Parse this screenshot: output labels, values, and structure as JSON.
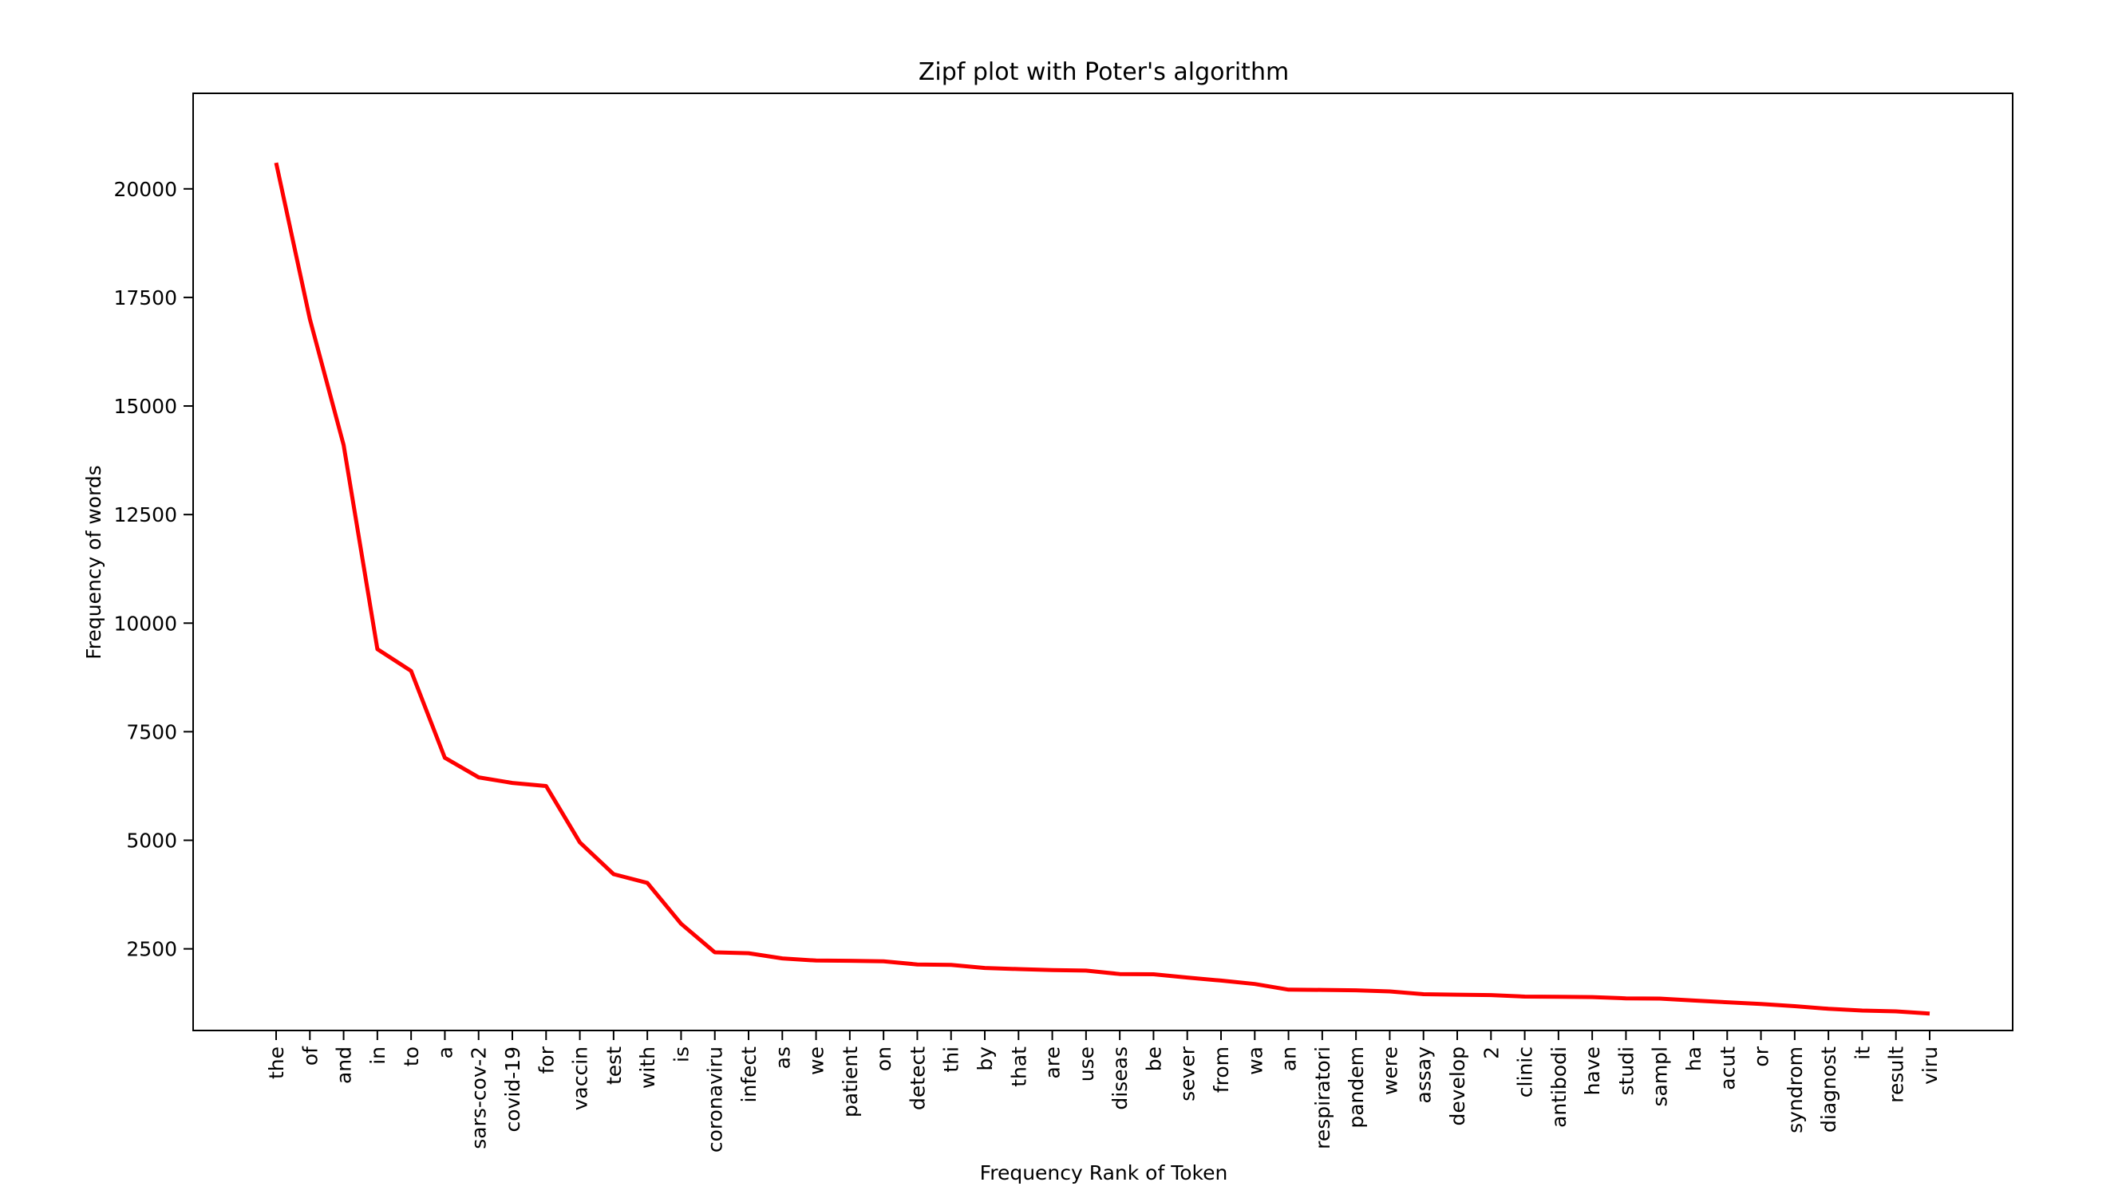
{
  "chart_data": {
    "type": "line",
    "title": "Zipf plot with Poter's algorithm",
    "xlabel": "Frequency Rank of Token",
    "ylabel": "Frequency of words",
    "categories": [
      "the",
      "of",
      "and",
      "in",
      "to",
      "a",
      "sars-cov-2",
      "covid-19",
      "for",
      "vaccin",
      "test",
      "with",
      "is",
      "coronaviru",
      "infect",
      "as",
      "we",
      "patient",
      "on",
      "detect",
      "thi",
      "by",
      "that",
      "are",
      "use",
      "diseas",
      "be",
      "sever",
      "from",
      "wa",
      "an",
      "respiratori",
      "pandem",
      "were",
      "assay",
      "develop",
      "2",
      "clinic",
      "antibodi",
      "have",
      "studi",
      "sampl",
      "ha",
      "acut",
      "or",
      "syndrom",
      "diagnost",
      "it",
      "result",
      "viru"
    ],
    "series": [
      {
        "color": "#ff0000",
        "values": [
          20600,
          17000,
          14100,
          9400,
          8900,
          6900,
          6450,
          6320,
          6250,
          4950,
          4220,
          4020,
          3080,
          2420,
          2400,
          2280,
          2230,
          2225,
          2215,
          2140,
          2130,
          2060,
          2035,
          2010,
          2000,
          1920,
          1915,
          1840,
          1770,
          1690,
          1560,
          1555,
          1545,
          1520,
          1455,
          1445,
          1435,
          1400,
          1395,
          1390,
          1360,
          1355,
          1310,
          1270,
          1230,
          1180,
          1120,
          1080,
          1060,
          1010
        ]
      }
    ],
    "yticks": [
      2500,
      5000,
      7500,
      10000,
      12500,
      15000,
      17500,
      20000
    ],
    "ylim": [
      620,
      22200
    ],
    "grid": false,
    "legend": "none"
  }
}
